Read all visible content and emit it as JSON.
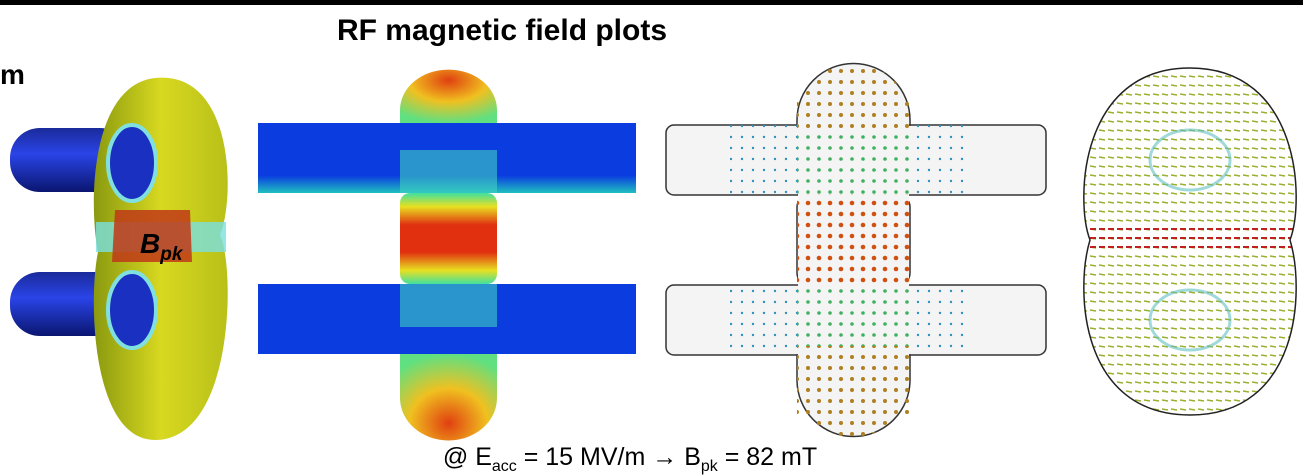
{
  "title": "RF magnetic field plots",
  "left_fragment": "m",
  "label": {
    "main": "B",
    "sub": "pk"
  },
  "caption": {
    "parts": [
      "@ E",
      "acc",
      " = 15 MV/m ",
      "→",
      " B",
      "pk",
      " = 82 mT"
    ]
  }
}
